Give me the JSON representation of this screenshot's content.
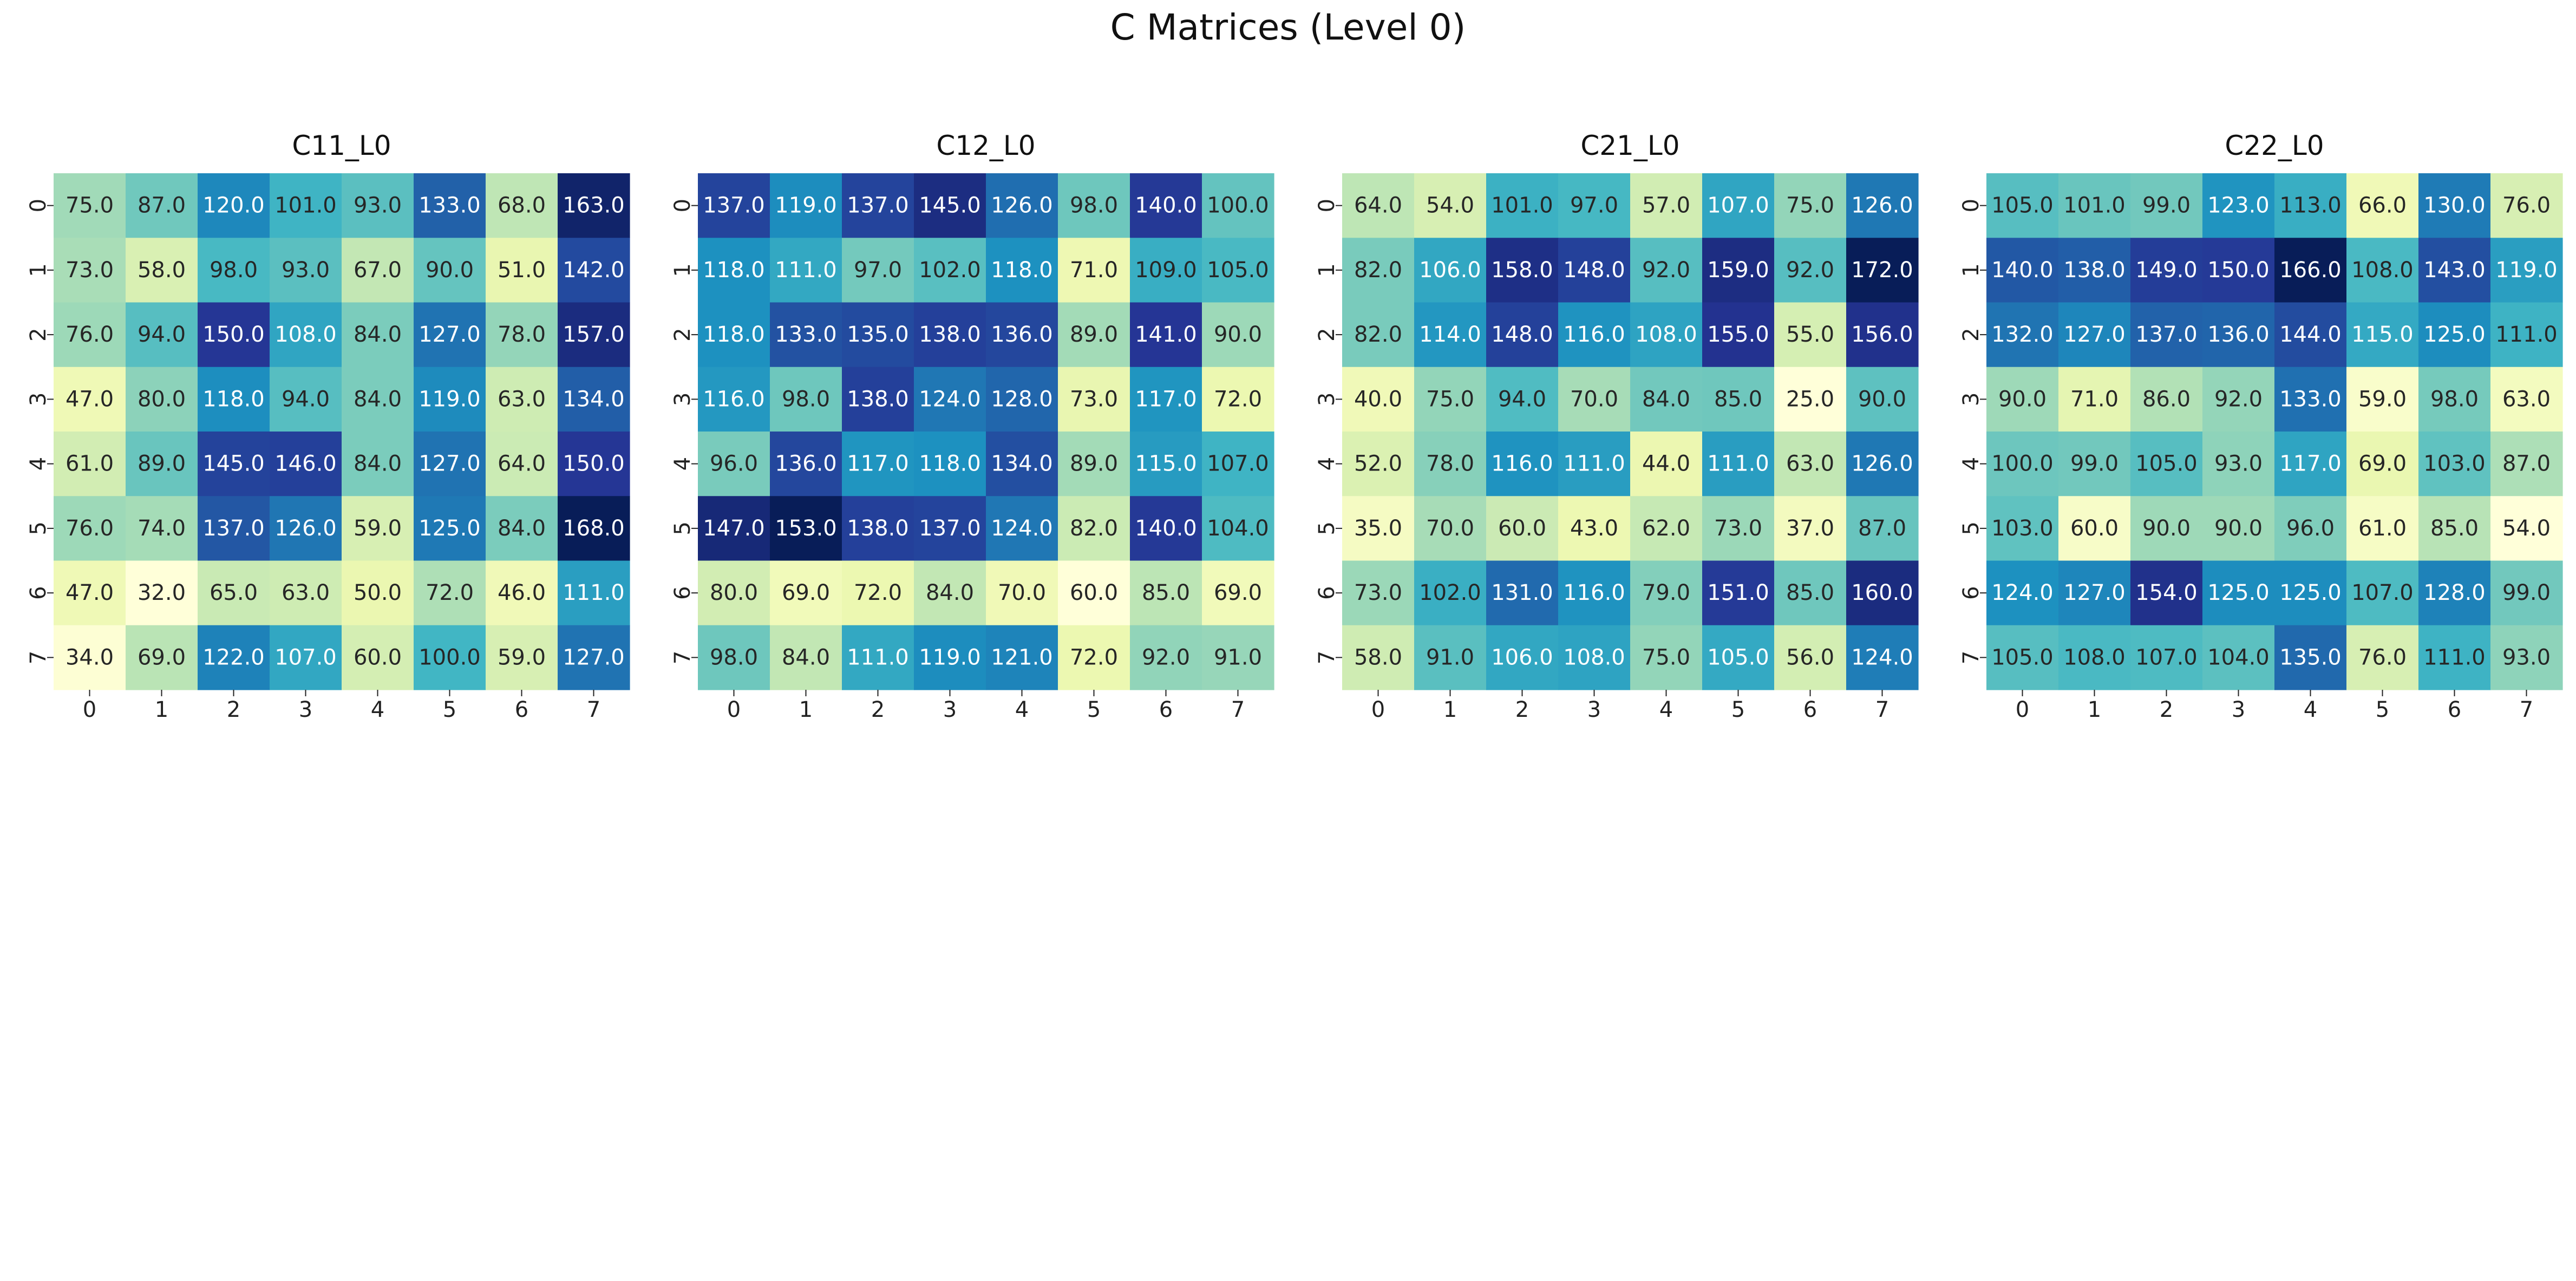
{
  "suptitle": "C Matrices (Level 0)",
  "chart_data": [
    {
      "type": "heatmap",
      "title": "C11_L0",
      "x_ticks": [
        "0",
        "1",
        "2",
        "3",
        "4",
        "5",
        "6",
        "7"
      ],
      "y_ticks": [
        "0",
        "1",
        "2",
        "3",
        "4",
        "5",
        "6",
        "7"
      ],
      "colormap": "YlGnBu",
      "annotation_format": "one-decimal",
      "colorbar": false,
      "values": [
        [
          75.0,
          87.0,
          120.0,
          101.0,
          93.0,
          133.0,
          68.0,
          163.0
        ],
        [
          73.0,
          58.0,
          98.0,
          93.0,
          67.0,
          90.0,
          51.0,
          142.0
        ],
        [
          76.0,
          94.0,
          150.0,
          108.0,
          84.0,
          127.0,
          78.0,
          157.0
        ],
        [
          47.0,
          80.0,
          118.0,
          94.0,
          84.0,
          119.0,
          63.0,
          134.0
        ],
        [
          61.0,
          89.0,
          145.0,
          146.0,
          84.0,
          127.0,
          64.0,
          150.0
        ],
        [
          76.0,
          74.0,
          137.0,
          126.0,
          59.0,
          125.0,
          84.0,
          168.0
        ],
        [
          47.0,
          32.0,
          65.0,
          63.0,
          50.0,
          72.0,
          46.0,
          111.0
        ],
        [
          34.0,
          69.0,
          122.0,
          107.0,
          60.0,
          100.0,
          59.0,
          127.0
        ]
      ]
    },
    {
      "type": "heatmap",
      "title": "C12_L0",
      "x_ticks": [
        "0",
        "1",
        "2",
        "3",
        "4",
        "5",
        "6",
        "7"
      ],
      "y_ticks": [
        "0",
        "1",
        "2",
        "3",
        "4",
        "5",
        "6",
        "7"
      ],
      "colormap": "YlGnBu",
      "annotation_format": "one-decimal",
      "colorbar": false,
      "values": [
        [
          137.0,
          119.0,
          137.0,
          145.0,
          126.0,
          98.0,
          140.0,
          100.0
        ],
        [
          118.0,
          111.0,
          97.0,
          102.0,
          118.0,
          71.0,
          109.0,
          105.0
        ],
        [
          118.0,
          133.0,
          135.0,
          138.0,
          136.0,
          89.0,
          141.0,
          90.0
        ],
        [
          116.0,
          98.0,
          138.0,
          124.0,
          128.0,
          73.0,
          117.0,
          72.0
        ],
        [
          96.0,
          136.0,
          117.0,
          118.0,
          134.0,
          89.0,
          115.0,
          107.0
        ],
        [
          147.0,
          153.0,
          138.0,
          137.0,
          124.0,
          82.0,
          140.0,
          104.0
        ],
        [
          80.0,
          69.0,
          72.0,
          84.0,
          70.0,
          60.0,
          85.0,
          69.0
        ],
        [
          98.0,
          84.0,
          111.0,
          119.0,
          121.0,
          72.0,
          92.0,
          91.0
        ]
      ]
    },
    {
      "type": "heatmap",
      "title": "C21_L0",
      "x_ticks": [
        "0",
        "1",
        "2",
        "3",
        "4",
        "5",
        "6",
        "7"
      ],
      "y_ticks": [
        "0",
        "1",
        "2",
        "3",
        "4",
        "5",
        "6",
        "7"
      ],
      "colormap": "YlGnBu",
      "annotation_format": "one-decimal",
      "colorbar": false,
      "values": [
        [
          64.0,
          54.0,
          101.0,
          97.0,
          57.0,
          107.0,
          75.0,
          126.0
        ],
        [
          82.0,
          106.0,
          158.0,
          148.0,
          92.0,
          159.0,
          92.0,
          172.0
        ],
        [
          82.0,
          114.0,
          148.0,
          116.0,
          108.0,
          155.0,
          55.0,
          156.0
        ],
        [
          40.0,
          75.0,
          94.0,
          70.0,
          84.0,
          85.0,
          25.0,
          90.0
        ],
        [
          52.0,
          78.0,
          116.0,
          111.0,
          44.0,
          111.0,
          63.0,
          126.0
        ],
        [
          35.0,
          70.0,
          60.0,
          43.0,
          62.0,
          73.0,
          37.0,
          87.0
        ],
        [
          73.0,
          102.0,
          131.0,
          116.0,
          79.0,
          151.0,
          85.0,
          160.0
        ],
        [
          58.0,
          91.0,
          106.0,
          108.0,
          75.0,
          105.0,
          56.0,
          124.0
        ]
      ]
    },
    {
      "type": "heatmap",
      "title": "C22_L0",
      "x_ticks": [
        "0",
        "1",
        "2",
        "3",
        "4",
        "5",
        "6",
        "7"
      ],
      "y_ticks": [
        "0",
        "1",
        "2",
        "3",
        "4",
        "5",
        "6",
        "7"
      ],
      "colormap": "YlGnBu",
      "annotation_format": "one-decimal",
      "colorbar": false,
      "values": [
        [
          105.0,
          101.0,
          99.0,
          123.0,
          113.0,
          66.0,
          130.0,
          76.0
        ],
        [
          140.0,
          138.0,
          149.0,
          150.0,
          166.0,
          108.0,
          143.0,
          119.0
        ],
        [
          132.0,
          127.0,
          137.0,
          136.0,
          144.0,
          115.0,
          125.0,
          111.0
        ],
        [
          90.0,
          71.0,
          86.0,
          92.0,
          133.0,
          59.0,
          98.0,
          63.0
        ],
        [
          100.0,
          99.0,
          105.0,
          93.0,
          117.0,
          69.0,
          103.0,
          87.0
        ],
        [
          103.0,
          60.0,
          90.0,
          90.0,
          96.0,
          61.0,
          85.0,
          54.0
        ],
        [
          124.0,
          127.0,
          154.0,
          125.0,
          125.0,
          107.0,
          128.0,
          99.0
        ],
        [
          105.0,
          108.0,
          107.0,
          104.0,
          135.0,
          76.0,
          111.0,
          93.0
        ]
      ]
    }
  ]
}
